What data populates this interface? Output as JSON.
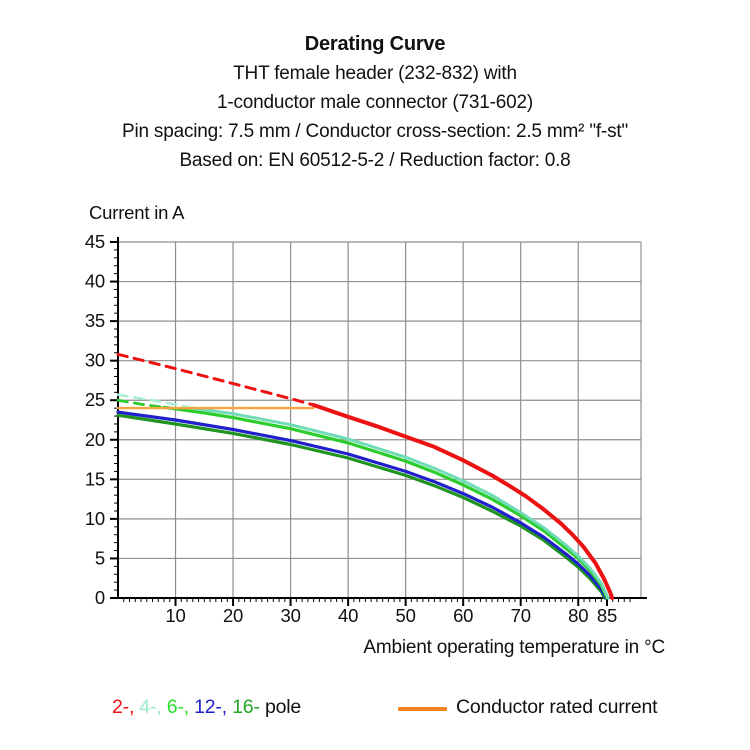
{
  "header": {
    "title": "Derating Curve",
    "subtitle_lines": [
      "THT female header (232-832) with",
      "1-conductor male connector  (731-602)",
      "Pin spacing: 7.5 mm / Conductor cross-section: 2.5 mm² \"f-st\"",
      "Based on: EN 60512-5-2 / Reduction factor: 0.8"
    ]
  },
  "chart_data": {
    "type": "line",
    "title": "Derating Curve",
    "xlabel": "Ambient operating temperature in °C",
    "ylabel": "Current in A",
    "xlim": [
      0,
      91
    ],
    "ylim": [
      0,
      45
    ],
    "x_major_ticks": [
      10,
      20,
      30,
      40,
      50,
      60,
      70,
      80,
      85
    ],
    "x_minor_step": 1,
    "y_major_ticks": [
      0,
      5,
      10,
      15,
      20,
      25,
      30,
      35,
      40,
      45
    ],
    "y_minor_step": 1,
    "grid": true,
    "grid_color": "#8f8f8f",
    "axis_color": "#000000",
    "note": "dashed segments mark current above the conductor rated current (24 A)",
    "series": [
      {
        "name": "16-pole",
        "color": "#209420",
        "dashed": [],
        "solid": [
          [
            0,
            23.1
          ],
          [
            10,
            22.0
          ],
          [
            20,
            20.8
          ],
          [
            30,
            19.4
          ],
          [
            40,
            17.7
          ],
          [
            50,
            15.5
          ],
          [
            55,
            14.2
          ],
          [
            60,
            12.7
          ],
          [
            65,
            11.0
          ],
          [
            70,
            9.1
          ],
          [
            74,
            7.3
          ],
          [
            78,
            5.1
          ],
          [
            80,
            3.9
          ],
          [
            82,
            2.5
          ],
          [
            84,
            0.8
          ],
          [
            84.6,
            0
          ]
        ]
      },
      {
        "name": "12-pole",
        "color": "#2020cc",
        "dashed": [],
        "solid": [
          [
            0,
            23.5
          ],
          [
            10,
            22.5
          ],
          [
            20,
            21.3
          ],
          [
            30,
            19.9
          ],
          [
            40,
            18.2
          ],
          [
            50,
            16.0
          ],
          [
            55,
            14.7
          ],
          [
            60,
            13.2
          ],
          [
            65,
            11.5
          ],
          [
            70,
            9.5
          ],
          [
            74,
            7.7
          ],
          [
            78,
            5.5
          ],
          [
            80,
            4.3
          ],
          [
            82,
            2.9
          ],
          [
            84,
            1.1
          ],
          [
            84.8,
            0
          ]
        ]
      },
      {
        "name": "6-pole",
        "color": "#2ccc2c",
        "dashed": [
          [
            0,
            25.0
          ],
          [
            4,
            24.5
          ],
          [
            8,
            24.1
          ]
        ],
        "solid": [
          [
            8,
            24.1
          ],
          [
            15,
            23.4
          ],
          [
            20,
            22.8
          ],
          [
            30,
            21.4
          ],
          [
            40,
            19.6
          ],
          [
            50,
            17.3
          ],
          [
            55,
            15.9
          ],
          [
            60,
            14.3
          ],
          [
            65,
            12.5
          ],
          [
            70,
            10.4
          ],
          [
            74,
            8.5
          ],
          [
            78,
            6.2
          ],
          [
            80,
            5.0
          ],
          [
            82,
            3.5
          ],
          [
            84,
            1.6
          ],
          [
            85,
            0
          ]
        ]
      },
      {
        "name": "4-pole",
        "color": "#6fdcb6",
        "dash_color": "#a9efd2",
        "dashed": [
          [
            0,
            25.7
          ],
          [
            5,
            25.1
          ],
          [
            9,
            24.6
          ],
          [
            13,
            24.0
          ]
        ],
        "solid": [
          [
            13,
            24.0
          ],
          [
            20,
            23.3
          ],
          [
            30,
            21.9
          ],
          [
            40,
            20.1
          ],
          [
            50,
            17.8
          ],
          [
            55,
            16.4
          ],
          [
            60,
            14.8
          ],
          [
            65,
            13.0
          ],
          [
            70,
            10.8
          ],
          [
            74,
            8.9
          ],
          [
            78,
            6.6
          ],
          [
            80,
            5.3
          ],
          [
            82,
            3.8
          ],
          [
            84,
            1.9
          ],
          [
            85.2,
            0
          ]
        ]
      },
      {
        "name": "Conductor rated current",
        "color": "#f9a340",
        "dashed": [],
        "solid": [
          [
            0,
            24
          ],
          [
            34,
            24
          ]
        ]
      },
      {
        "name": "2-pole",
        "color": "#ec1212",
        "dashed": [
          [
            0,
            30.8
          ],
          [
            10,
            29.0
          ],
          [
            20,
            27.1
          ],
          [
            30,
            25.2
          ],
          [
            34,
            24.4
          ]
        ],
        "solid": [
          [
            34,
            24.4
          ],
          [
            40,
            22.9
          ],
          [
            45,
            21.7
          ],
          [
            50,
            20.4
          ],
          [
            55,
            19.1
          ],
          [
            60,
            17.4
          ],
          [
            65,
            15.5
          ],
          [
            68,
            14.2
          ],
          [
            71,
            12.8
          ],
          [
            74,
            11.2
          ],
          [
            77,
            9.4
          ],
          [
            79,
            8.0
          ],
          [
            81,
            6.4
          ],
          [
            83,
            4.4
          ],
          [
            84.5,
            2.4
          ],
          [
            85.5,
            0.8
          ],
          [
            85.9,
            0
          ]
        ]
      }
    ]
  },
  "legend": {
    "pole_items": [
      {
        "label": "2-",
        "color": "#ee1111"
      },
      {
        "label": "4-",
        "color": "#9debc6"
      },
      {
        "label": "6-",
        "color": "#2ee02e"
      },
      {
        "label": "12-",
        "color": "#2222cc"
      },
      {
        "label": "16-",
        "color": "#23a523"
      }
    ],
    "suffix": " pole",
    "rated_label": "Conductor rated current",
    "rated_color": "#f5831f"
  }
}
